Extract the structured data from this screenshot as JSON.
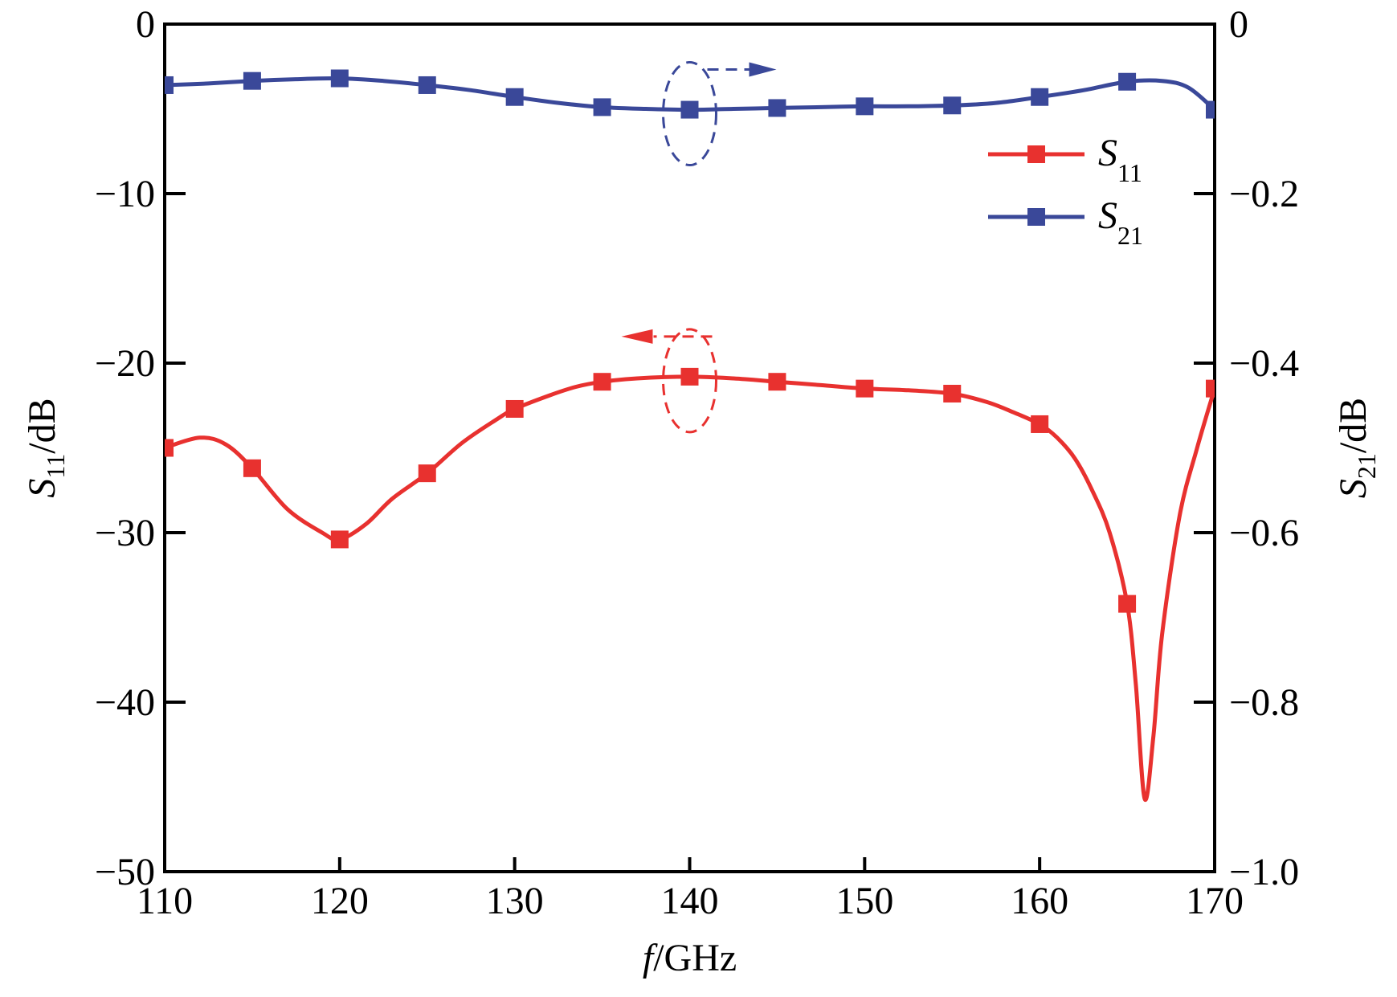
{
  "chart_data": {
    "type": "line",
    "xlabel": {
      "var": "f",
      "unit": "/GHz"
    },
    "ylabel_left": {
      "var": "S",
      "sub": "11",
      "unit": "/dB"
    },
    "ylabel_right": {
      "var": "S",
      "sub": "21",
      "unit": "/dB"
    },
    "xlim": [
      110,
      170
    ],
    "ylim_left": [
      -50,
      0
    ],
    "ylim_right": [
      -1.0,
      0
    ],
    "x_ticks": [
      110,
      120,
      130,
      140,
      150,
      160,
      170
    ],
    "x_tick_labels": [
      "110",
      "120",
      "130",
      "140",
      "150",
      "160",
      "170"
    ],
    "y_left_ticks": [
      0,
      -10,
      -20,
      -30,
      -40,
      -50
    ],
    "y_left_tick_labels": [
      "0",
      "−10",
      "−20",
      "−30",
      "−40",
      "−50"
    ],
    "y_right_ticks": [
      0,
      -0.2,
      -0.4,
      -0.6,
      -0.8,
      -1.0
    ],
    "y_right_tick_labels": [
      "0",
      "−0.2",
      "−0.4",
      "−0.6",
      "−0.8",
      "−1.0"
    ],
    "grid": false,
    "legend_position": "top-right",
    "series": [
      {
        "name": "S11",
        "name_var": "S",
        "name_sub": "11",
        "axis": "left",
        "color": "#e8312f",
        "x": [
          110,
          112,
          113.5,
          115,
          117,
          119,
          120,
          121.5,
          123,
          125,
          127,
          129,
          130,
          132,
          133.5,
          135,
          137,
          140,
          142.5,
          145,
          147.5,
          150,
          152.5,
          155,
          157,
          158.5,
          160,
          161,
          162,
          163,
          164,
          165,
          165.5,
          166,
          166.5,
          167,
          168,
          169,
          170
        ],
        "y": [
          -25.0,
          -24.4,
          -24.8,
          -26.2,
          -28.6,
          -30.0,
          -30.4,
          -29.5,
          -28.0,
          -26.5,
          -24.7,
          -23.3,
          -22.7,
          -21.9,
          -21.4,
          -21.1,
          -20.9,
          -20.8,
          -20.9,
          -21.1,
          -21.3,
          -21.5,
          -21.6,
          -21.8,
          -22.3,
          -22.9,
          -23.6,
          -24.4,
          -25.6,
          -27.5,
          -30.0,
          -34.2,
          -39.0,
          -45.7,
          -42.0,
          -36.0,
          -29.0,
          -25.0,
          -21.5
        ],
        "markers_x": [
          110,
          115,
          120,
          125,
          130,
          135,
          140,
          145,
          150,
          155,
          160,
          165,
          170
        ],
        "markers_y": [
          -25.0,
          -26.2,
          -30.4,
          -26.5,
          -22.7,
          -21.1,
          -20.8,
          -21.1,
          -21.5,
          -21.8,
          -23.6,
          -34.2,
          -21.5
        ]
      },
      {
        "name": "S21",
        "name_var": "S",
        "name_sub": "21",
        "axis": "right",
        "color": "#3a4899",
        "x": [
          110,
          112.5,
          115,
          117.5,
          120,
          122.5,
          125,
          127.5,
          130,
          132.5,
          135,
          137.5,
          140,
          142.5,
          145,
          147.5,
          150,
          152.5,
          155,
          157.5,
          160,
          162.5,
          165,
          167,
          168.5,
          170
        ],
        "y": [
          -0.072,
          -0.07,
          -0.067,
          -0.065,
          -0.064,
          -0.067,
          -0.072,
          -0.078,
          -0.086,
          -0.093,
          -0.098,
          -0.1,
          -0.101,
          -0.1,
          -0.099,
          -0.098,
          -0.097,
          -0.097,
          -0.096,
          -0.093,
          -0.086,
          -0.078,
          -0.068,
          -0.067,
          -0.075,
          -0.101
        ],
        "markers_x": [
          110,
          115,
          120,
          125,
          130,
          135,
          140,
          145,
          150,
          155,
          160,
          165,
          170
        ],
        "markers_y": [
          -0.072,
          -0.067,
          -0.064,
          -0.072,
          -0.086,
          -0.098,
          -0.101,
          -0.099,
          -0.097,
          -0.096,
          -0.086,
          -0.068,
          -0.101
        ]
      }
    ],
    "annotations": [
      {
        "type": "ellipse-arrow",
        "series": "S21",
        "center": [
          140,
          -0.101
        ],
        "direction": "right",
        "color": "#3a4899"
      },
      {
        "type": "ellipse-arrow",
        "series": "S11",
        "center": [
          140,
          -20.8
        ],
        "direction": "left",
        "color": "#e8312f"
      }
    ]
  }
}
